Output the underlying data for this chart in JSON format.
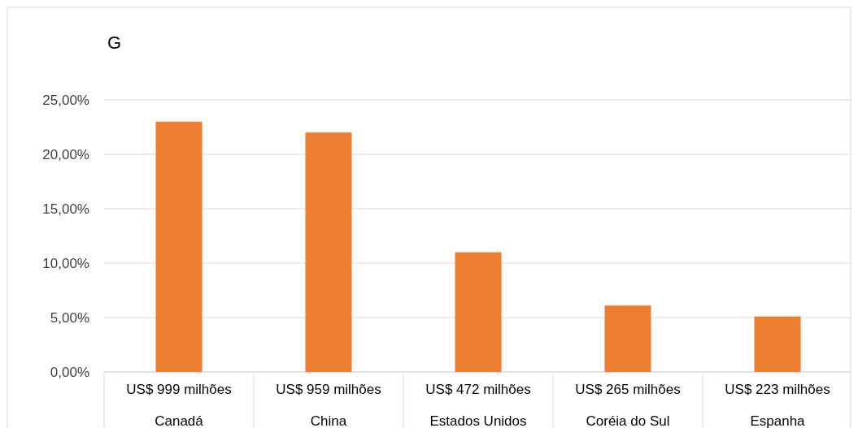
{
  "chart_data": {
    "type": "bar",
    "title": "G",
    "categories": [
      "Canadá",
      "China",
      "Estados Unidos",
      "Coréia do Sul",
      "Espanha"
    ],
    "values": [
      23,
      22,
      11,
      6.1,
      5.1
    ],
    "color": "#ed7d31",
    "ylim": [
      0,
      25
    ],
    "yticks": [
      {
        "value": 0,
        "label": "0,00%"
      },
      {
        "value": 5,
        "label": "5,00%"
      },
      {
        "value": 10,
        "label": "10,00%"
      },
      {
        "value": 15,
        "label": "15,00%"
      },
      {
        "value": 20,
        "label": "20,00%"
      },
      {
        "value": 25,
        "label": "25,00%"
      }
    ],
    "grid": "y",
    "annotations": [
      "US$ 999 milhões",
      "US$ 959 milhões",
      "US$ 472 milhões",
      "US$ 265 milhões",
      "US$ 223 milhões"
    ]
  }
}
